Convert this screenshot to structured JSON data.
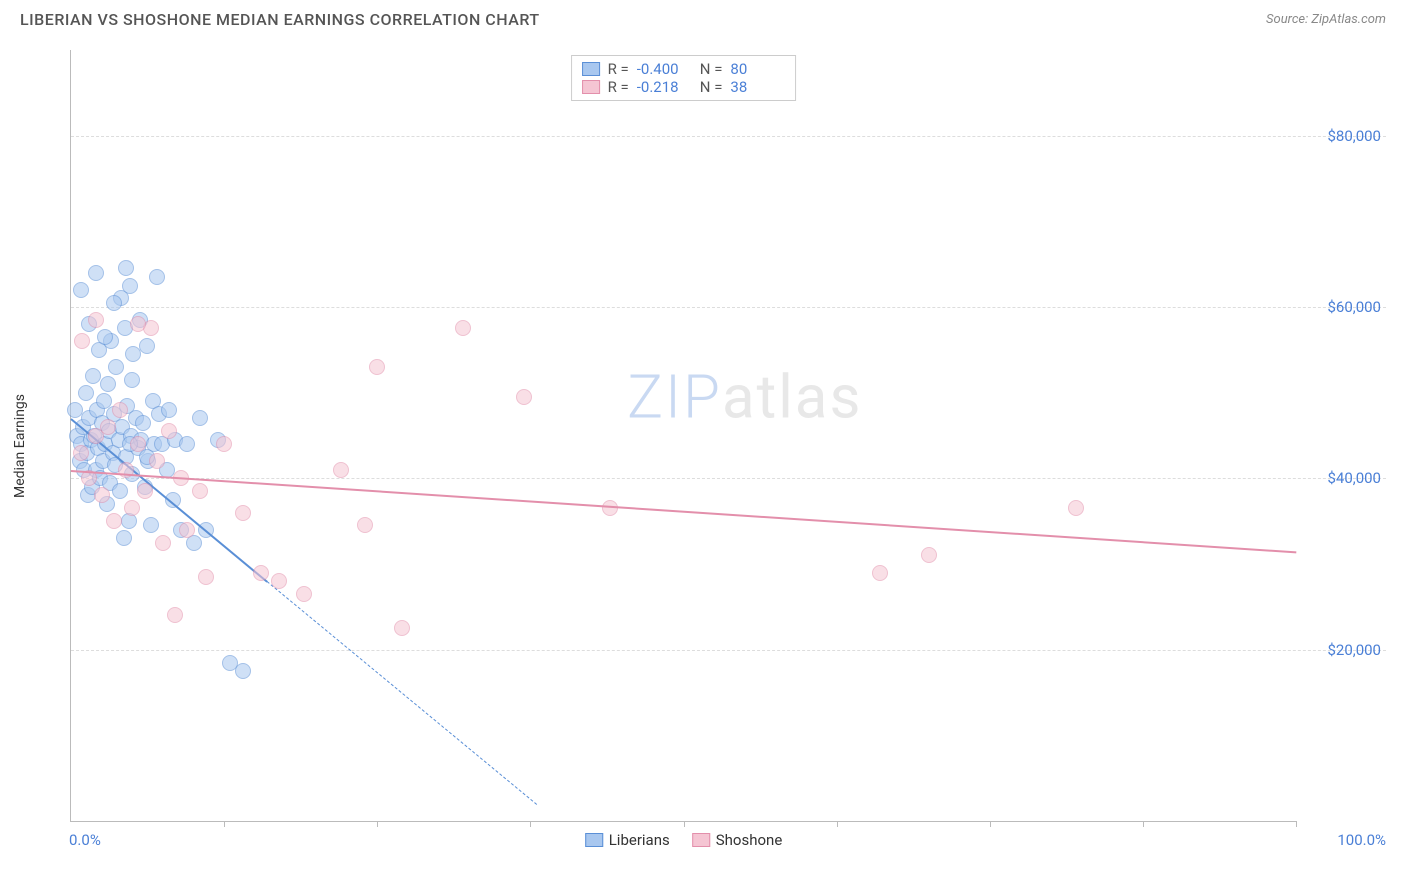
{
  "title": "LIBERIAN VS SHOSHONE MEDIAN EARNINGS CORRELATION CHART",
  "source": "Source: ZipAtlas.com",
  "ylabel": "Median Earnings",
  "watermark_parts": [
    "ZIP",
    "atlas"
  ],
  "chart": {
    "type": "scatter",
    "xlim": [
      0,
      100
    ],
    "ylim": [
      0,
      90000
    ],
    "xlabel_min": "0.0%",
    "xlabel_max": "100.0%",
    "xtick_positions": [
      12.5,
      25,
      37.5,
      50,
      62.5,
      75,
      87.5,
      100
    ],
    "yticks": [
      20000,
      40000,
      60000,
      80000
    ],
    "ytick_labels": [
      "$20,000",
      "$40,000",
      "$60,000",
      "$80,000"
    ],
    "grid_color": "#dddddd",
    "axis_color": "#bbbbbb",
    "background_color": "#ffffff",
    "tick_label_color": "#4a7fd6",
    "point_radius": 8,
    "point_opacity": 0.55,
    "series": [
      {
        "name": "Liberians",
        "color_fill": "#a8c7ef",
        "color_stroke": "#5a8fd6",
        "R": "-0.400",
        "N": "80",
        "trend": {
          "x1": 0,
          "y1": 47000,
          "x2": 16,
          "y2": 28000,
          "extend_x2": 38,
          "extend_y2": 2000
        },
        "points": [
          [
            0.3,
            48000
          ],
          [
            0.5,
            45000
          ],
          [
            0.7,
            42000
          ],
          [
            0.8,
            44000
          ],
          [
            1.0,
            46000
          ],
          [
            1.1,
            41000
          ],
          [
            1.2,
            50000
          ],
          [
            1.3,
            43000
          ],
          [
            1.4,
            38000
          ],
          [
            1.5,
            47000
          ],
          [
            1.6,
            44500
          ],
          [
            1.7,
            39000
          ],
          [
            1.8,
            52000
          ],
          [
            1.9,
            45000
          ],
          [
            2.0,
            41000
          ],
          [
            2.1,
            48000
          ],
          [
            2.2,
            43500
          ],
          [
            2.3,
            55000
          ],
          [
            2.4,
            40000
          ],
          [
            2.5,
            46500
          ],
          [
            2.6,
            42000
          ],
          [
            2.7,
            49000
          ],
          [
            2.8,
            44000
          ],
          [
            2.9,
            37000
          ],
          [
            3.0,
            51000
          ],
          [
            3.1,
            45500
          ],
          [
            3.2,
            39500
          ],
          [
            3.3,
            56000
          ],
          [
            3.4,
            43000
          ],
          [
            3.5,
            47500
          ],
          [
            3.6,
            41500
          ],
          [
            3.7,
            53000
          ],
          [
            3.9,
            44500
          ],
          [
            4.0,
            38500
          ],
          [
            4.1,
            61000
          ],
          [
            4.2,
            46000
          ],
          [
            4.3,
            33000
          ],
          [
            4.4,
            57500
          ],
          [
            4.5,
            42500
          ],
          [
            4.6,
            48500
          ],
          [
            4.7,
            35000
          ],
          [
            4.8,
            62500
          ],
          [
            4.9,
            45000
          ],
          [
            5.0,
            40500
          ],
          [
            5.1,
            54500
          ],
          [
            5.3,
            47000
          ],
          [
            5.5,
            43500
          ],
          [
            5.6,
            58500
          ],
          [
            5.7,
            44500
          ],
          [
            5.9,
            46500
          ],
          [
            6.0,
            39000
          ],
          [
            6.2,
            55500
          ],
          [
            6.3,
            42000
          ],
          [
            6.5,
            34500
          ],
          [
            6.7,
            49000
          ],
          [
            6.8,
            44000
          ],
          [
            7.0,
            63500
          ],
          [
            7.2,
            47500
          ],
          [
            7.4,
            44000
          ],
          [
            8.0,
            48000
          ],
          [
            8.3,
            37500
          ],
          [
            8.5,
            44500
          ],
          [
            9.0,
            34000
          ],
          [
            9.5,
            44000
          ],
          [
            10.0,
            32500
          ],
          [
            10.5,
            47000
          ],
          [
            11.0,
            34000
          ],
          [
            12.0,
            44500
          ],
          [
            13.0,
            18500
          ],
          [
            14.0,
            17500
          ],
          [
            2.0,
            64000
          ],
          [
            4.5,
            64500
          ],
          [
            0.8,
            62000
          ],
          [
            3.5,
            60500
          ],
          [
            1.5,
            58000
          ],
          [
            2.8,
            56500
          ],
          [
            4.8,
            44000
          ],
          [
            6.2,
            42500
          ],
          [
            7.8,
            41000
          ],
          [
            5.0,
            51500
          ]
        ]
      },
      {
        "name": "Shoshone",
        "color_fill": "#f5c5d3",
        "color_stroke": "#e38fab",
        "R": "-0.218",
        "N": "38",
        "trend": {
          "x1": 0,
          "y1": 41000,
          "x2": 100,
          "y2": 31500
        },
        "points": [
          [
            0.8,
            43000
          ],
          [
            1.5,
            40000
          ],
          [
            2.0,
            45000
          ],
          [
            2.5,
            38000
          ],
          [
            3.0,
            46000
          ],
          [
            3.5,
            35000
          ],
          [
            4.0,
            48000
          ],
          [
            4.5,
            41000
          ],
          [
            5.0,
            36500
          ],
          [
            5.5,
            44000
          ],
          [
            6.0,
            38500
          ],
          [
            6.5,
            57500
          ],
          [
            7.0,
            42000
          ],
          [
            7.5,
            32500
          ],
          [
            8.0,
            45500
          ],
          [
            8.5,
            24000
          ],
          [
            9.0,
            40000
          ],
          [
            9.5,
            34000
          ],
          [
            10.5,
            38500
          ],
          [
            11.0,
            28500
          ],
          [
            12.5,
            44000
          ],
          [
            14.0,
            36000
          ],
          [
            15.5,
            29000
          ],
          [
            17.0,
            28000
          ],
          [
            19.0,
            26500
          ],
          [
            22.0,
            41000
          ],
          [
            25.0,
            53000
          ],
          [
            24.0,
            34500
          ],
          [
            27.0,
            22500
          ],
          [
            32.0,
            57500
          ],
          [
            37.0,
            49500
          ],
          [
            44.0,
            36500
          ],
          [
            2.0,
            58500
          ],
          [
            66.0,
            29000
          ],
          [
            70.0,
            31000
          ],
          [
            82.0,
            36500
          ],
          [
            5.5,
            58000
          ],
          [
            0.9,
            56000
          ]
        ]
      }
    ]
  },
  "legend_bottom": [
    {
      "label": "Liberians",
      "fill": "#a8c7ef",
      "stroke": "#5a8fd6"
    },
    {
      "label": "Shoshone",
      "fill": "#f5c5d3",
      "stroke": "#e38fab"
    }
  ]
}
